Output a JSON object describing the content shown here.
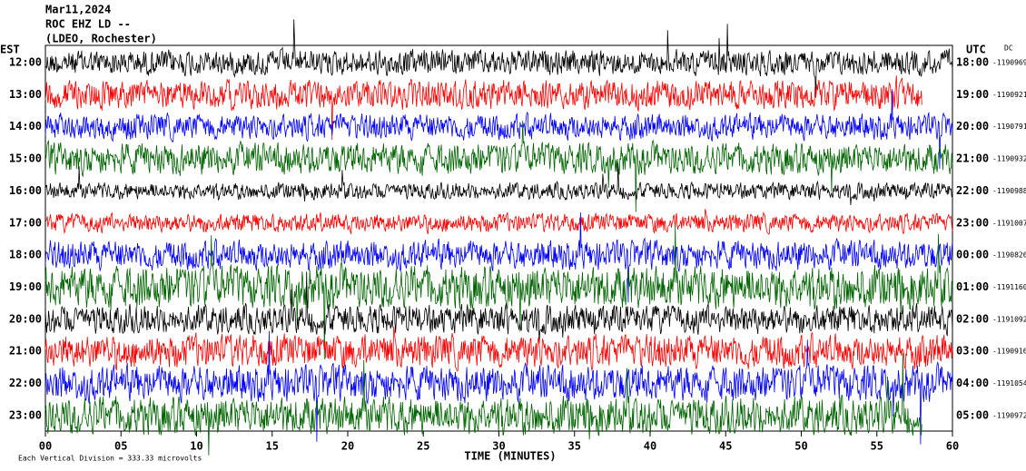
{
  "chart_data": {
    "type": "helicorder",
    "title": "Mar11,2024",
    "subtitle": "ROC EHZ LD --",
    "station": "(LDEO, Rochester)",
    "left_axis_label": "EST",
    "right_axis_label": "UTC",
    "dc_label": "DC",
    "x_label": "TIME (MINUTES)",
    "scale_note": "Each Vertical Division =  333.33 microvolts",
    "division_microvolts": 333.33,
    "xlim": [
      0,
      60
    ],
    "xticks": [
      {
        "value": 0,
        "label": "00"
      },
      {
        "value": 5,
        "label": "05"
      },
      10,
      15,
      20,
      25,
      30,
      35,
      40,
      45,
      50,
      55,
      60
    ],
    "rows": [
      {
        "est": "12:00",
        "utc": "18:00",
        "dc": "-1190969",
        "color": "#000000",
        "amplitude": 115,
        "end": 60
      },
      {
        "est": "13:00",
        "utc": "19:00",
        "dc": "-1190921",
        "color": "#ff0000",
        "amplitude": 130,
        "end": 58
      },
      {
        "est": "14:00",
        "utc": "20:00",
        "dc": "-1190791",
        "color": "#0000ff",
        "amplitude": 115,
        "end": 60
      },
      {
        "est": "15:00",
        "utc": "21:00",
        "dc": "-1190932",
        "color": "#006400",
        "amplitude": 140,
        "end": 60
      },
      {
        "est": "16:00",
        "utc": "22:00",
        "dc": "-1190988",
        "color": "#000000",
        "amplitude": 75,
        "end": 60
      },
      {
        "est": "17:00",
        "utc": "23:00",
        "dc": "-1191007",
        "color": "#ff0000",
        "amplitude": 85,
        "end": 60
      },
      {
        "est": "18:00",
        "utc": "00:00",
        "dc": "-1190826",
        "color": "#0000ff",
        "amplitude": 130,
        "end": 60
      },
      {
        "est": "19:00",
        "utc": "01:00",
        "dc": "-1191160",
        "color": "#006400",
        "amplitude": 190,
        "end": 60
      },
      {
        "est": "20:00",
        "utc": "02:00",
        "dc": "-1191092",
        "color": "#000000",
        "amplitude": 130,
        "end": 60
      },
      {
        "est": "21:00",
        "utc": "03:00",
        "dc": "-1190916",
        "color": "#ff0000",
        "amplitude": 150,
        "end": 60
      },
      {
        "est": "22:00",
        "utc": "04:00",
        "dc": "-1191054",
        "color": "#0000ff",
        "amplitude": 160,
        "end": 60
      },
      {
        "est": "23:00",
        "utc": "05:00",
        "dc": "-1190972",
        "color": "#006400",
        "amplitude": 170,
        "end": 58
      }
    ]
  }
}
